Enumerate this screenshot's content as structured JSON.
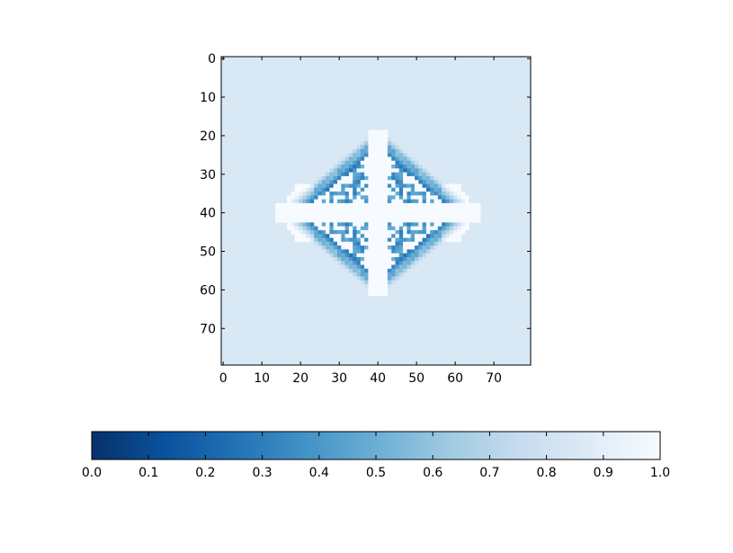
{
  "chart_data": [
    {
      "type": "heatmap",
      "title": "",
      "xlabel": "",
      "ylabel": "",
      "grid": false,
      "colormap": "Blues_r",
      "shape": [
        80,
        80
      ],
      "xlim": [
        -0.5,
        79.5
      ],
      "ylim": [
        79.5,
        -0.5
      ],
      "x_ticks": [
        "0",
        "10",
        "20",
        "30",
        "40",
        "50",
        "60",
        "70"
      ],
      "y_ticks": [
        "0",
        "10",
        "20",
        "30",
        "40",
        "50",
        "60",
        "70"
      ],
      "background_value": 0.85,
      "pattern": "diamond-shaped symmetric cellular pattern centered near (40, 40), spanning rows 18-62 and columns 14-66, with white (1.0) cells surrounded by dark blue (0.2-0.4) halo"
    },
    {
      "type": "colorbar",
      "orientation": "horizontal",
      "range": [
        0.0,
        1.0
      ],
      "ticks": [
        "0.0",
        "0.1",
        "0.2",
        "0.3",
        "0.4",
        "0.5",
        "0.6",
        "0.7",
        "0.8",
        "0.9",
        "1.0"
      ],
      "colors": [
        "#08306b",
        "#08519c",
        "#2171b5",
        "#4292c6",
        "#6baed6",
        "#9ecae1",
        "#c6dbef",
        "#deebf7",
        "#f7fbff"
      ]
    }
  ]
}
